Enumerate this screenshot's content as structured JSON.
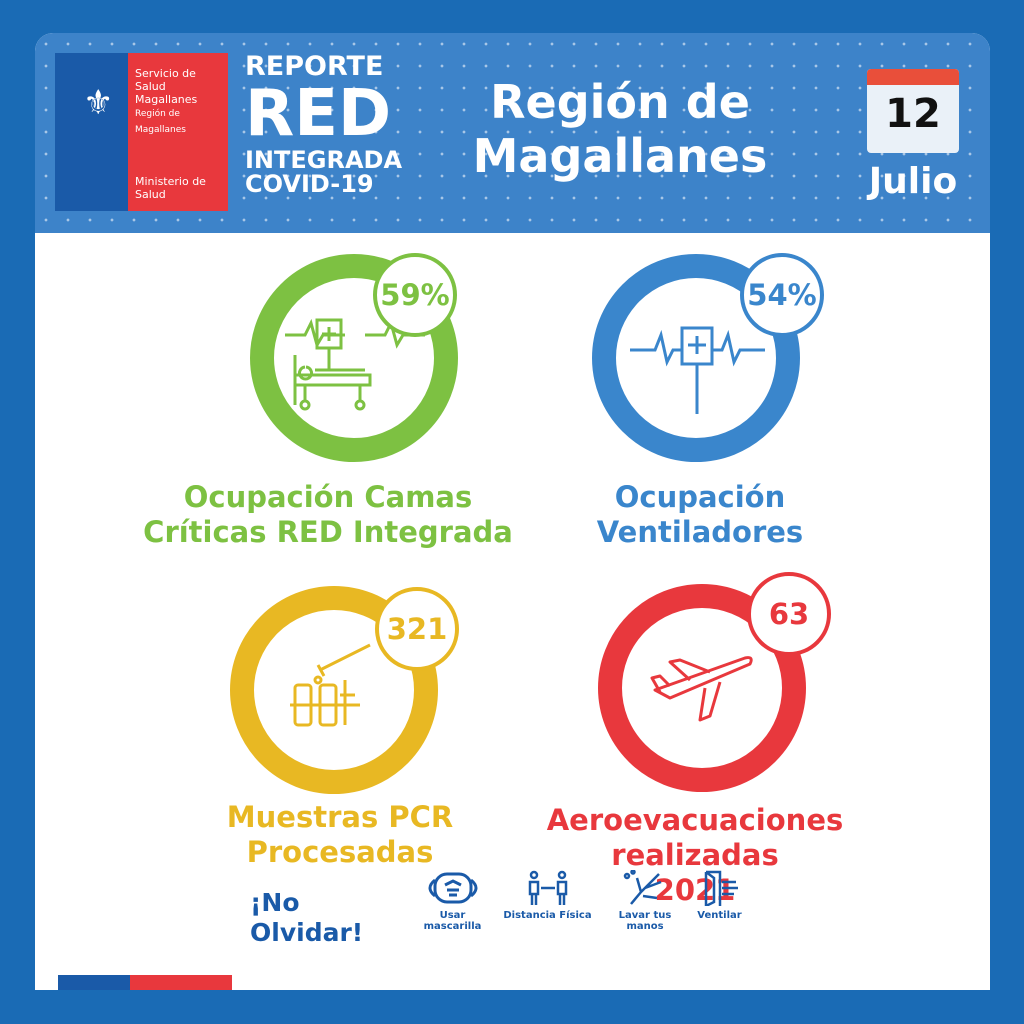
{
  "header": {
    "logo": {
      "org": "Servicio de Salud Magallanes",
      "region": "Región de Magallanes",
      "ministry": "Ministerio de Salud"
    },
    "report": {
      "line1": "REPORTE",
      "line2": "RED",
      "line3": "INTEGRADA",
      "line4": "COVID-19"
    },
    "title_line1": "Región de",
    "title_line2": "Magallanes",
    "date": {
      "day": "12",
      "month": "Julio"
    }
  },
  "stats": [
    {
      "value": "59%",
      "label_line1": "Ocupación Camas",
      "label_line2": "Críticas RED Integrada",
      "color": "#7dc142",
      "icon": "hospital-bed-icon"
    },
    {
      "value": "54%",
      "label_line1": "Ocupación",
      "label_line2": "Ventiladores",
      "color": "#3a86cc",
      "icon": "ventilator-icon"
    },
    {
      "value": "321",
      "label_line1": "Muestras PCR",
      "label_line2": "Procesadas",
      "color": "#e8b823",
      "icon": "test-tubes-icon"
    },
    {
      "value": "63",
      "label_line1": "Aeroevacuaciones",
      "label_line2": "realizadas",
      "label_line3": "2021",
      "color": "#e8383d",
      "icon": "airplane-icon"
    }
  ],
  "footer": {
    "reminder_line1": "¡No",
    "reminder_line2": "Olvidar!",
    "tips": [
      {
        "label": "Usar mascarilla",
        "icon": "mask-icon"
      },
      {
        "label": "Distancia Física",
        "icon": "distance-icon"
      },
      {
        "label": "Lavar tus manos",
        "icon": "hand-wash-icon"
      },
      {
        "label": "Ventilar",
        "icon": "ventilate-icon"
      }
    ]
  }
}
